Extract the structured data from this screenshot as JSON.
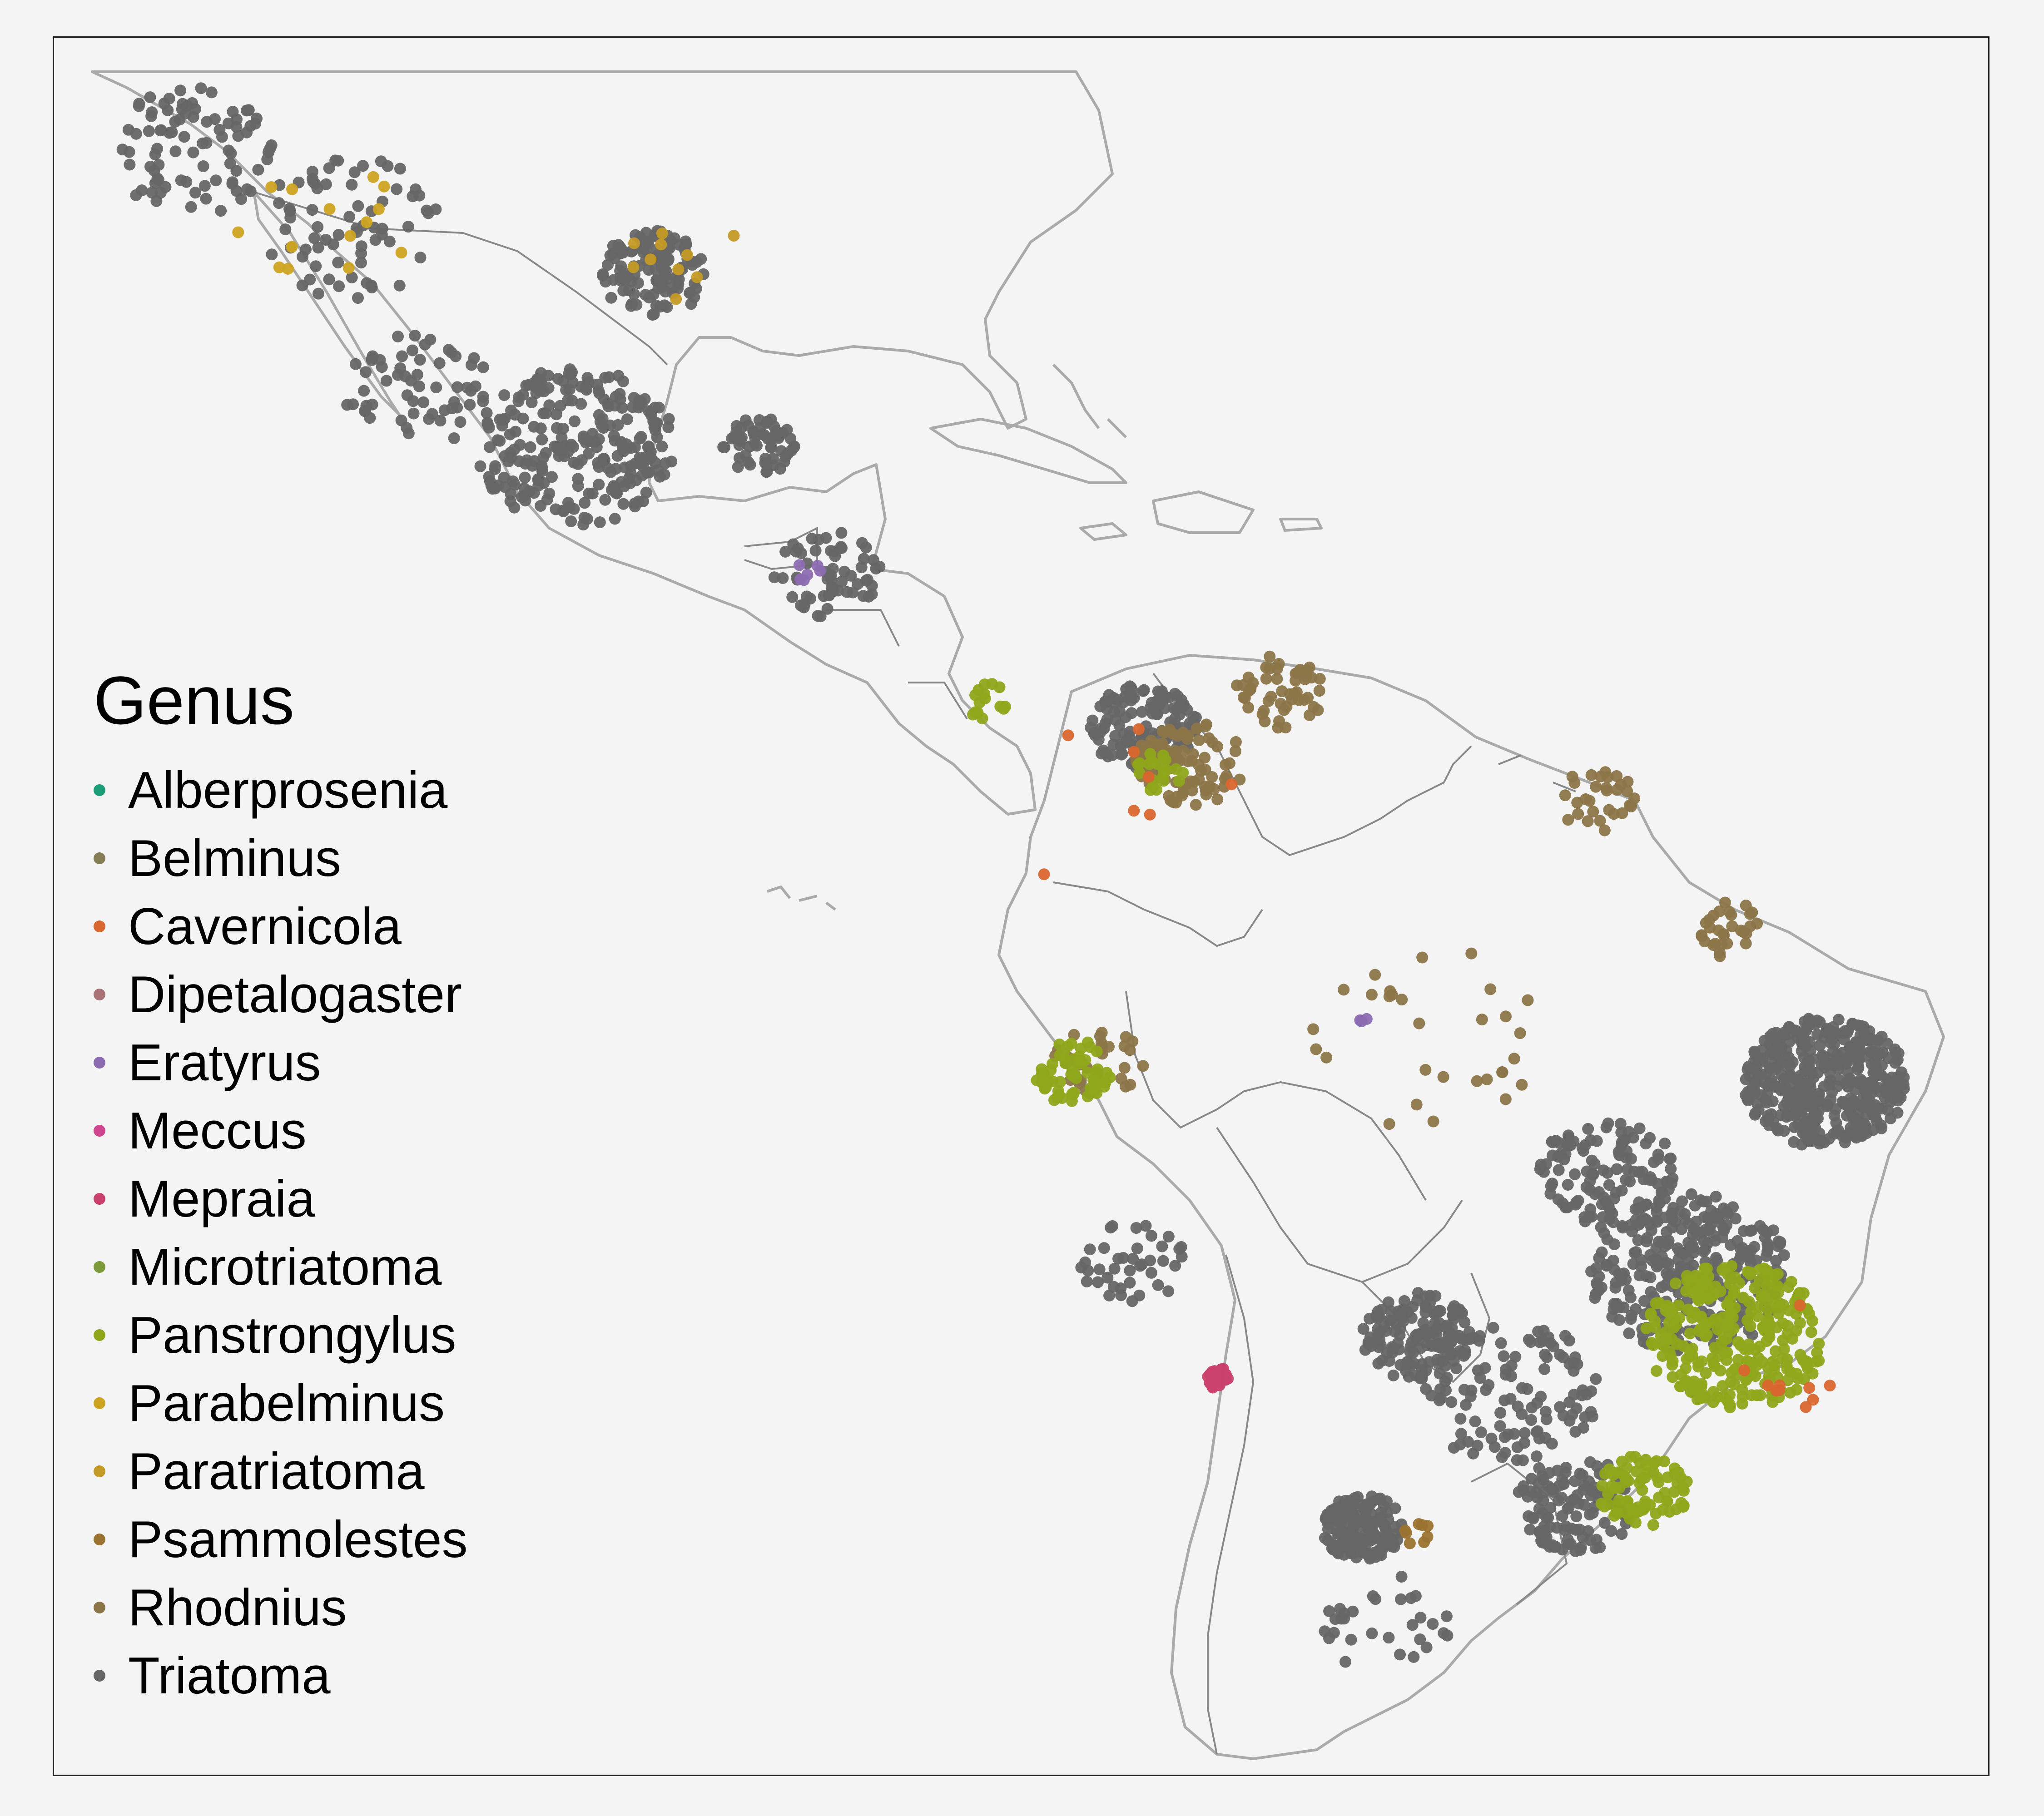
{
  "map": {
    "legend": {
      "title": "Genus",
      "items": [
        {
          "label": "Alberprosenia",
          "color": "#1b9e77"
        },
        {
          "label": "Belminus",
          "color": "#857d54"
        },
        {
          "label": "Cavernicola",
          "color": "#d9662e"
        },
        {
          "label": "Dipetalogaster",
          "color": "#a97276"
        },
        {
          "label": "Eratyrus",
          "color": "#8c6bb1"
        },
        {
          "label": "Meccus",
          "color": "#d04590"
        },
        {
          "label": "Mepraia",
          "color": "#c9416b"
        },
        {
          "label": "Microtriatoma",
          "color": "#7c9a3a"
        },
        {
          "label": "Panstrongylus",
          "color": "#8fa61b"
        },
        {
          "label": "Parabelminus",
          "color": "#cda421"
        },
        {
          "label": "Paratriatoma",
          "color": "#c49a26"
        },
        {
          "label": "Psammolestes",
          "color": "#9b7330"
        },
        {
          "label": "Rhodnius",
          "color": "#8c7548"
        },
        {
          "label": "Triatoma",
          "color": "#666666"
        }
      ]
    },
    "colors": {
      "background": "#f4f4f4",
      "coastline": "#aaaaaa",
      "border": "#888888",
      "frame": "#222222"
    }
  }
}
